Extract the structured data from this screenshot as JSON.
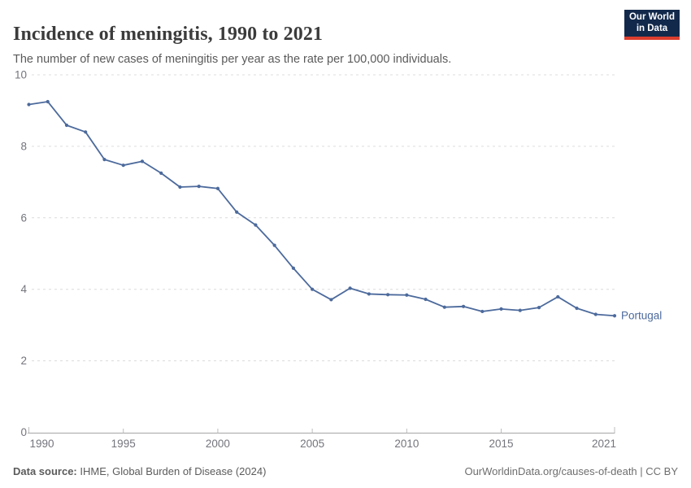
{
  "header": {
    "title": "Incidence of meningitis, 1990 to 2021",
    "subtitle": "The number of new cases of meningitis per year as the rate per 100,000 individuals.",
    "logo": {
      "line1": "Our World",
      "line2": "in Data"
    }
  },
  "chart_data": {
    "type": "line",
    "title": "Incidence of meningitis, 1990 to 2021",
    "xlabel": "",
    "ylabel": "",
    "xlim": [
      1990,
      2021
    ],
    "ylim": [
      0,
      10
    ],
    "xticks": [
      1990,
      1995,
      2000,
      2005,
      2010,
      2015,
      2021
    ],
    "yticks": [
      0,
      2,
      4,
      6,
      8,
      10
    ],
    "grid": "horizontal-dashed",
    "legend_position": "end-of-line-label",
    "x": [
      1990,
      1991,
      1992,
      1993,
      1994,
      1995,
      1996,
      1997,
      1998,
      1999,
      2000,
      2001,
      2002,
      2003,
      2004,
      2005,
      2006,
      2007,
      2008,
      2009,
      2010,
      2011,
      2012,
      2013,
      2014,
      2015,
      2016,
      2017,
      2018,
      2019,
      2020,
      2021
    ],
    "series": [
      {
        "name": "Portugal",
        "color": "#4c6a9c",
        "values": [
          9.17,
          9.25,
          8.59,
          8.4,
          7.63,
          7.47,
          7.58,
          7.25,
          6.86,
          6.88,
          6.82,
          6.16,
          5.8,
          5.23,
          4.59,
          4.0,
          3.71,
          4.03,
          3.87,
          3.85,
          3.84,
          3.72,
          3.5,
          3.52,
          3.38,
          3.45,
          3.41,
          3.49,
          3.79,
          3.47,
          3.3,
          3.26
        ]
      }
    ]
  },
  "footer": {
    "source_label": "Data source:",
    "source_text": "IHME, Global Burden of Disease (2024)",
    "credit": "OurWorldinData.org/causes-of-death | CC BY"
  },
  "colors": {
    "line": "#4c6a9c",
    "grid": "#dcdcdc",
    "axis": "#a5a5a5",
    "tick": "#bdbdbd",
    "tick_label": "#74757d"
  }
}
